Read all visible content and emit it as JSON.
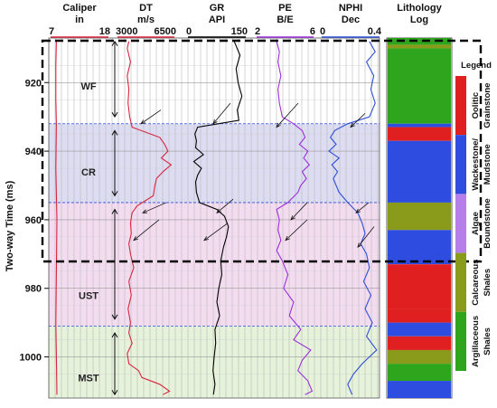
{
  "chart_data": {
    "type": "line",
    "ylabel": "Two-way Time (ms)",
    "ylim": [
      907,
      1012
    ],
    "y_ticks": [
      920,
      940,
      960,
      980,
      1000
    ],
    "tracks": [
      {
        "key": "caliper",
        "title": "Caliper",
        "unit": "in",
        "min": 7,
        "max": 18,
        "min_label": "7",
        "max_label": "18",
        "color": "#d7263d",
        "t": [
          908,
          915,
          925,
          932,
          945,
          960,
          975,
          990,
          1000,
          1011
        ],
        "values": [
          8.1,
          8.0,
          8.0,
          8.1,
          8.0,
          8.2,
          8.1,
          8.0,
          8.1,
          8.2
        ]
      },
      {
        "key": "dt",
        "title": "DT",
        "unit": "m/s",
        "min": 3000,
        "max": 6500,
        "min_label": "3000",
        "max_label": "6500",
        "color": "#d7263d",
        "t": [
          908,
          910,
          914,
          918,
          922,
          926,
          930,
          933,
          936,
          938,
          940,
          942,
          944,
          946,
          948,
          950,
          953,
          956,
          958,
          961,
          964,
          967,
          970,
          974,
          978,
          982,
          986,
          990,
          993,
          996,
          999,
          1002,
          1004,
          1006,
          1008,
          1010,
          1011
        ],
        "values": [
          3700,
          3600,
          3800,
          3600,
          3700,
          3650,
          3750,
          3900,
          5600,
          5900,
          6100,
          5700,
          6300,
          5800,
          5400,
          5300,
          5200,
          4200,
          3900,
          3800,
          3850,
          3700,
          3800,
          4000,
          3700,
          3850,
          3650,
          3800,
          3700,
          3900,
          3600,
          3700,
          4300,
          4500,
          5600,
          6200,
          5800
        ]
      },
      {
        "key": "gr",
        "title": "GR",
        "unit": "API",
        "min": 0,
        "max": 150,
        "min_label": "0",
        "max_label": "150",
        "color": "#000000",
        "t": [
          908,
          912,
          916,
          920,
          924,
          928,
          931,
          933,
          935,
          937,
          939,
          941,
          943,
          945,
          947,
          949,
          952,
          955,
          957,
          959,
          962,
          965,
          968,
          972,
          976,
          980,
          984,
          988,
          992,
          996,
          1000,
          1004,
          1008,
          1011
        ],
        "values": [
          120,
          135,
          125,
          130,
          140,
          128,
          132,
          25,
          18,
          22,
          20,
          40,
          15,
          35,
          25,
          20,
          22,
          30,
          75,
          95,
          105,
          100,
          92,
          85,
          88,
          80,
          75,
          82,
          70,
          72,
          68,
          65,
          70,
          66
        ]
      },
      {
        "key": "pe",
        "title": "PE",
        "unit": "B/E",
        "min": 2,
        "max": 6,
        "min_label": "2",
        "max_label": "6",
        "color": "#9b30d9",
        "t": [
          908,
          911,
          914,
          918,
          922,
          926,
          930,
          932,
          934,
          936,
          938,
          940,
          942,
          944,
          946,
          948,
          950,
          952,
          955,
          957,
          960,
          963,
          966,
          969,
          972,
          976,
          980,
          984,
          988,
          992,
          995,
          998,
          1001,
          1004,
          1007,
          1010,
          1011
        ],
        "values": [
          3.4,
          3.6,
          3.5,
          3.7,
          3.5,
          3.6,
          3.8,
          4.6,
          5.2,
          5.4,
          5.0,
          5.6,
          5.3,
          5.7,
          5.2,
          5.5,
          5.1,
          4.9,
          4.2,
          3.4,
          3.6,
          3.5,
          3.7,
          3.4,
          3.8,
          4.2,
          3.9,
          4.6,
          4.3,
          5.1,
          4.6,
          5.8,
          5.2,
          4.9,
          5.6,
          5.9,
          5.4
        ]
      },
      {
        "key": "nphi",
        "title": "NPHI",
        "unit": "Dec",
        "min": 0,
        "max": 0.4,
        "min_label": "0",
        "max_label": "0.4",
        "color": "#2d4fd6",
        "t": [
          908,
          911,
          914,
          918,
          922,
          926,
          930,
          932,
          934,
          936,
          938,
          940,
          942,
          944,
          946,
          948,
          950,
          952,
          955,
          958,
          961,
          964,
          967,
          970,
          974,
          978,
          982,
          986,
          990,
          994,
          998,
          1002,
          1005,
          1008,
          1011
        ],
        "values": [
          0.33,
          0.37,
          0.31,
          0.36,
          0.34,
          0.37,
          0.33,
          0.18,
          0.09,
          0.06,
          0.1,
          0.05,
          0.12,
          0.07,
          0.11,
          0.08,
          0.1,
          0.12,
          0.18,
          0.25,
          0.28,
          0.3,
          0.27,
          0.31,
          0.33,
          0.29,
          0.34,
          0.3,
          0.35,
          0.31,
          0.38,
          0.28,
          0.22,
          0.18,
          0.21
        ]
      }
    ],
    "zones": [
      {
        "label": "WF",
        "from": 907,
        "to": 932,
        "color": "#ffffff"
      },
      {
        "label": "CR",
        "from": 932,
        "to": 955,
        "color": "#dcdcf2"
      },
      {
        "label": "UST",
        "from": 955,
        "to": 991,
        "color": "#f4dcf0"
      },
      {
        "label": "MST",
        "from": 991,
        "to": 1012,
        "color": "#e6f2da"
      }
    ],
    "lithology": {
      "title": "Lithology",
      "subtitle": "Log",
      "intervals": [
        {
          "from": 907,
          "to": 909,
          "type": "argillaceous"
        },
        {
          "from": 909,
          "to": 910,
          "type": "calcareous"
        },
        {
          "from": 910,
          "to": 932,
          "type": "argillaceous"
        },
        {
          "from": 932,
          "to": 933,
          "type": "wackestone"
        },
        {
          "from": 933,
          "to": 937,
          "type": "grainstone"
        },
        {
          "from": 937,
          "to": 955,
          "type": "wackestone"
        },
        {
          "from": 955,
          "to": 963,
          "type": "calcareous"
        },
        {
          "from": 963,
          "to": 973,
          "type": "wackestone"
        },
        {
          "from": 973,
          "to": 986,
          "type": "grainstone"
        },
        {
          "from": 986,
          "to": 990,
          "type": "grainstone"
        },
        {
          "from": 990,
          "to": 994,
          "type": "wackestone"
        },
        {
          "from": 994,
          "to": 998,
          "type": "grainstone"
        },
        {
          "from": 998,
          "to": 1002,
          "type": "calcareous"
        },
        {
          "from": 1002,
          "to": 1007,
          "type": "argillaceous"
        },
        {
          "from": 1007,
          "to": 1012,
          "type": "wackestone"
        }
      ]
    },
    "legend": {
      "title": "Legend",
      "items": [
        {
          "type": "grainstone",
          "label1": "Oolitic",
          "label2": "Grainstone",
          "color": "#e02020"
        },
        {
          "type": "wackestone",
          "label1": "Wackestone/",
          "label2": "Mudstone",
          "color": "#2e4de0"
        },
        {
          "type": "boundstone",
          "label1": "Algae",
          "label2": "Boundstone",
          "color": "#b57ee8"
        },
        {
          "type": "calcareous",
          "label1": "Calcareous",
          "label2": "Shales",
          "color": "#8a9a1a"
        },
        {
          "type": "argillaceous",
          "label1": "Argillaceous",
          "label2": "Shales",
          "color": "#2fa51e"
        }
      ]
    },
    "grid": true
  }
}
